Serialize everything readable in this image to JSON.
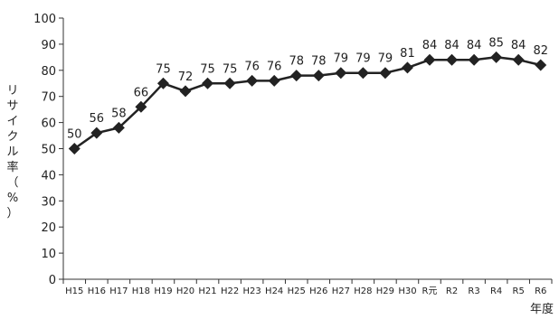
{
  "chart_data": {
    "type": "line",
    "ylabel_chars": [
      "リ",
      "サ",
      "イ",
      "ク",
      "ル",
      "率",
      "（",
      "%",
      "）"
    ],
    "xlabel": "年度",
    "ylim": [
      0,
      100
    ],
    "yticks": [
      "0",
      "10",
      "20",
      "30",
      "40",
      "50",
      "60",
      "70",
      "80",
      "90",
      "100"
    ],
    "categories": [
      "H15",
      "H16",
      "H17",
      "H18",
      "H19",
      "H20",
      "H21",
      "H22",
      "H23",
      "H24",
      "H25",
      "H26",
      "H27",
      "H28",
      "H29",
      "H30",
      "R元",
      "R2",
      "R3",
      "R4",
      "R5",
      "R6"
    ],
    "series": [
      {
        "values": [
          50,
          56,
          58,
          66,
          75,
          72,
          75,
          75,
          76,
          76,
          78,
          78,
          79,
          79,
          79,
          81,
          84,
          84,
          84,
          85,
          84,
          82
        ]
      }
    ],
    "line_color": "#222222",
    "marker": "diamond",
    "grid": false
  }
}
